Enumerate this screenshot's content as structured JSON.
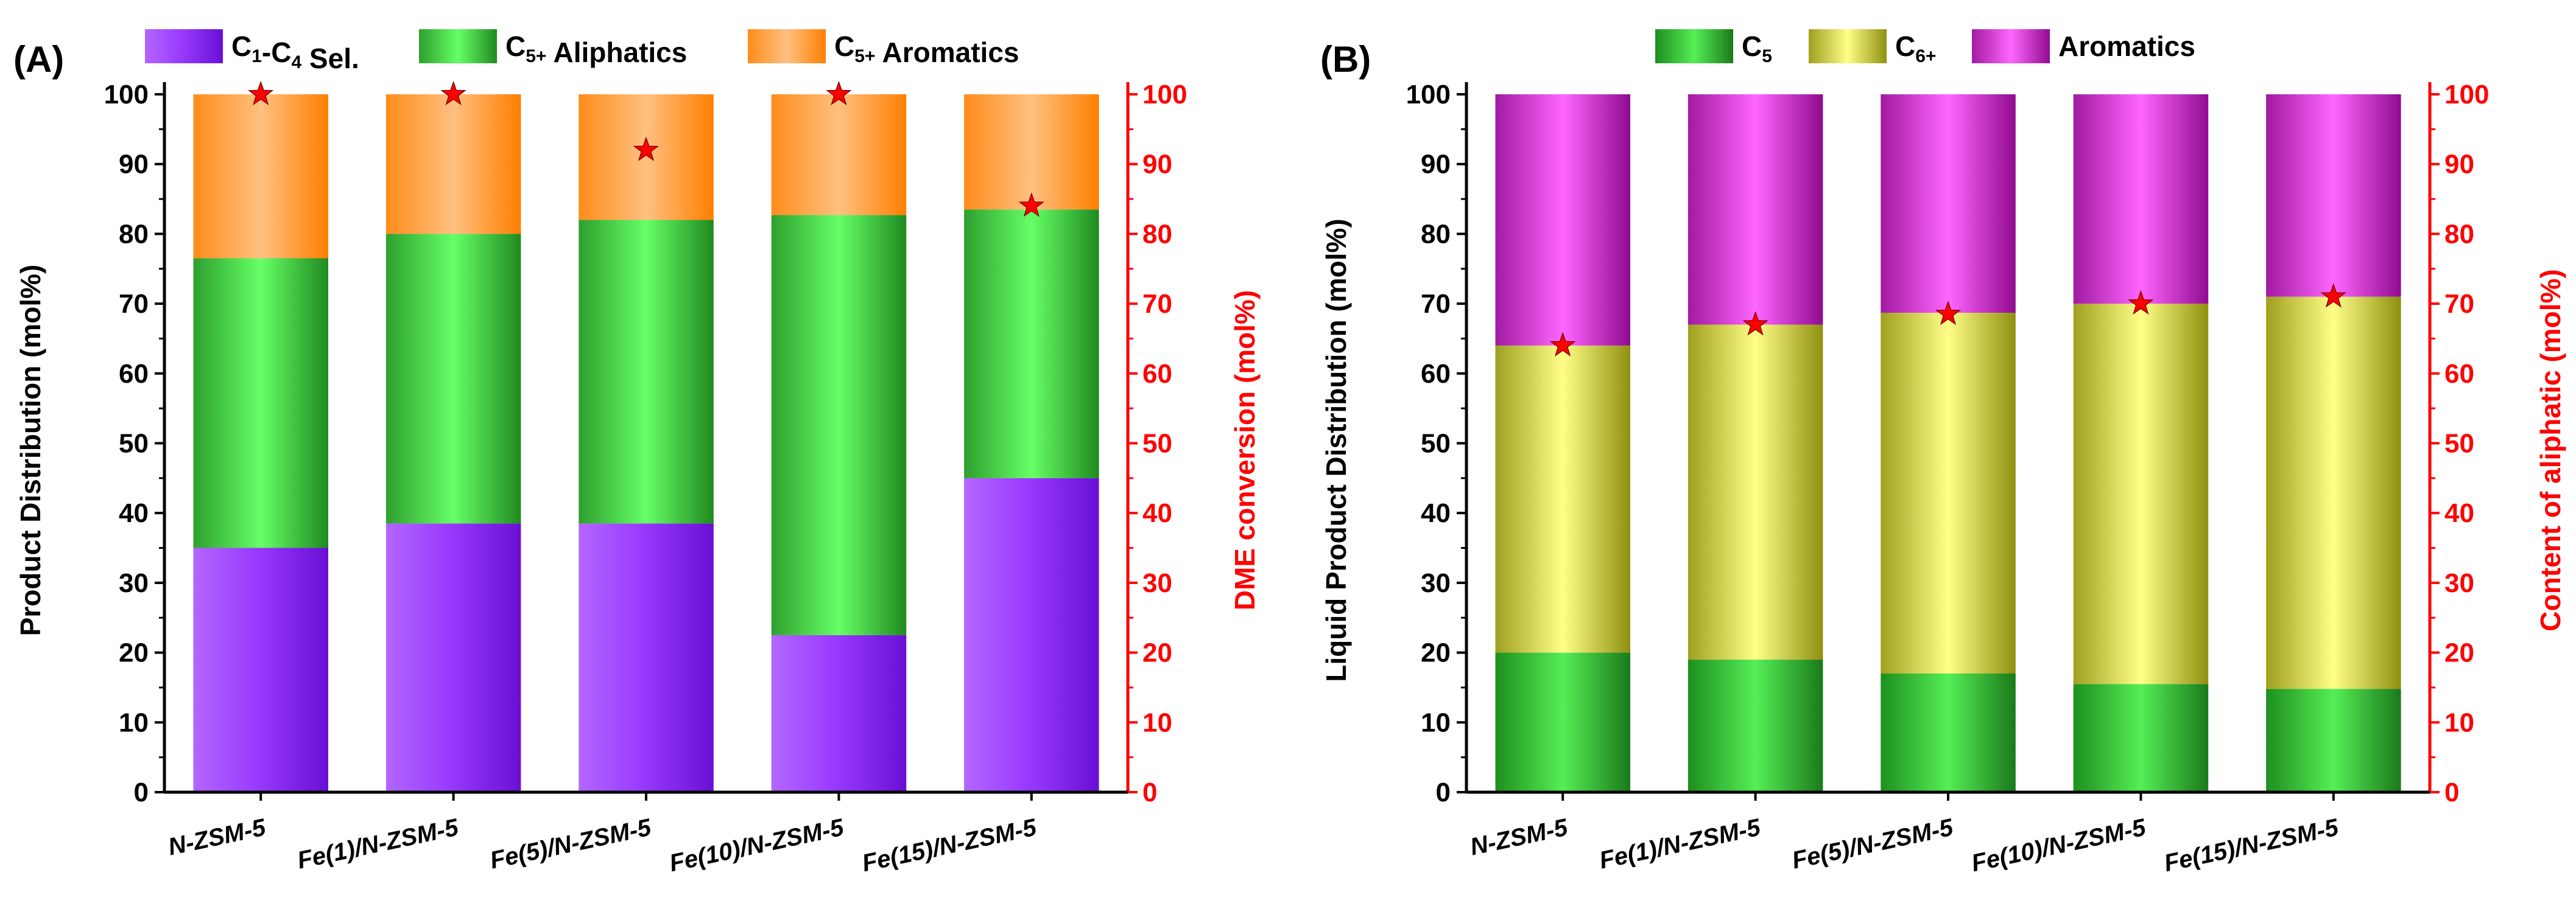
{
  "chart_data": [
    {
      "panel": "(A)",
      "type": "bar",
      "stacked": true,
      "ylabel": "Product Distribution (mol%)",
      "y2label": "DME conversion (mol%)",
      "ylim": [
        0,
        100
      ],
      "y2lim": [
        0,
        100
      ],
      "yticks": [
        0,
        10,
        20,
        30,
        40,
        50,
        60,
        70,
        80,
        90,
        100
      ],
      "categories": [
        "N-ZSM-5",
        "Fe(1)/N-ZSM-5",
        "Fe(5)/N-ZSM-5",
        "Fe(10)/N-ZSM-5",
        "Fe(15)/N-ZSM-5"
      ],
      "legend": [
        {
          "main": "C",
          "sub1": "1",
          "mid": "-C",
          "sub2": "4",
          "tail": " Sel."
        },
        {
          "main": "C",
          "sub1": "5+",
          "mid": "",
          "sub2": "",
          "tail": " Aliphatics"
        },
        {
          "main": "C",
          "sub1": "5+",
          "mid": "",
          "sub2": "",
          "tail": " Aromatics"
        }
      ],
      "series": [
        {
          "name": "C1-C4 Sel.",
          "color": "#8a2be2",
          "values": [
            35,
            38.5,
            38.5,
            22.5,
            45
          ]
        },
        {
          "name": "C5+ Aliphatics",
          "color": "#33cc33",
          "values": [
            41.5,
            41.5,
            43.5,
            60.2,
            38.5
          ]
        },
        {
          "name": "C5+ Aromatics",
          "color": "#ff9933",
          "values": [
            23.5,
            20,
            18,
            17.3,
            16.5
          ]
        }
      ],
      "markers": {
        "name": "DME conversion",
        "color": "#ff0000",
        "values": [
          100,
          100,
          92,
          100,
          84
        ]
      }
    },
    {
      "panel": "(B)",
      "type": "bar",
      "stacked": true,
      "ylabel": "Liquid Product Distribution (mol%)",
      "y2label": "Content of aliphatic (mol%)",
      "ylim": [
        0,
        100
      ],
      "y2lim": [
        0,
        100
      ],
      "yticks": [
        0,
        10,
        20,
        30,
        40,
        50,
        60,
        70,
        80,
        90,
        100
      ],
      "categories": [
        "N-ZSM-5",
        "Fe(1)/N-ZSM-5",
        "Fe(5)/N-ZSM-5",
        "Fe(10)/N-ZSM-5",
        "Fe(15)/N-ZSM-5"
      ],
      "legend": [
        {
          "main": "C",
          "sub1": "5",
          "mid": "",
          "sub2": "",
          "tail": ""
        },
        {
          "main": "C",
          "sub1": "6+",
          "mid": "",
          "sub2": "",
          "tail": ""
        },
        {
          "main": "Aromatics",
          "sub1": "",
          "mid": "",
          "sub2": "",
          "tail": ""
        }
      ],
      "series": [
        {
          "name": "C5",
          "color": "#33bb33",
          "values": [
            20,
            19,
            17,
            15.5,
            14.8
          ]
        },
        {
          "name": "C6+",
          "color": "#cccc33",
          "values": [
            44,
            48,
            51.7,
            54.5,
            56.2
          ]
        },
        {
          "name": "Aromatics",
          "color": "#cc33cc",
          "values": [
            36,
            33,
            31.3,
            30,
            29
          ]
        }
      ],
      "markers": {
        "name": "Content of aliphatic",
        "color": "#ff0000",
        "values": [
          64,
          67,
          68.5,
          70,
          71
        ]
      }
    }
  ]
}
